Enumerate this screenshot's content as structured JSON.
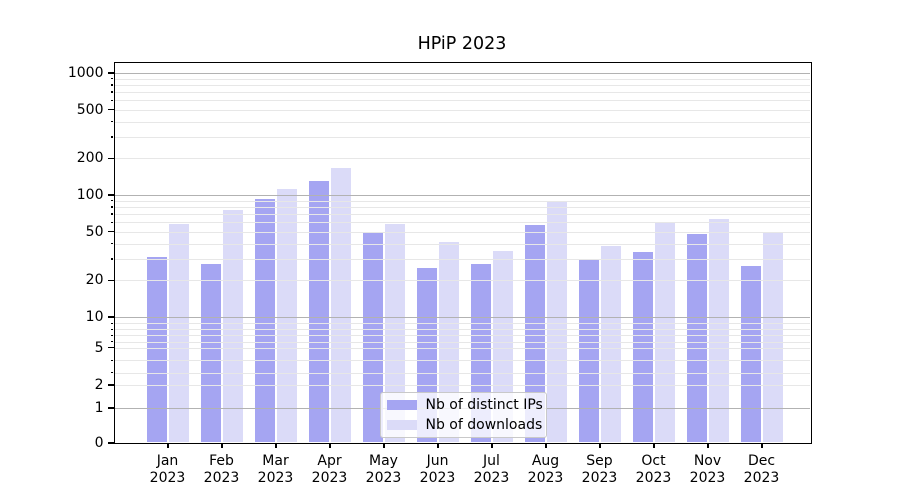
{
  "chart_data": {
    "type": "bar",
    "title": "HPiP 2023",
    "xlabel": "",
    "ylabel": "",
    "categories": [
      "Jan",
      "Feb",
      "Mar",
      "Apr",
      "May",
      "Jun",
      "Jul",
      "Aug",
      "Sep",
      "Oct",
      "Nov",
      "Dec"
    ],
    "category_year_line": "2023",
    "series": [
      {
        "name": "Nb of distinct IPs",
        "color": "#a5a5f2",
        "values": [
          31,
          27,
          92,
          130,
          50,
          25,
          27,
          57,
          30,
          34,
          48,
          26
        ]
      },
      {
        "name": "Nb of downloads",
        "color": "#dbdbf8",
        "values": [
          58,
          75,
          111,
          166,
          58,
          41,
          35,
          90,
          38,
          59,
          63,
          50
        ]
      }
    ],
    "y_axis": {
      "scale": "log-with-zero",
      "ticks": [
        0,
        1,
        2,
        5,
        10,
        20,
        50,
        100,
        200,
        500,
        1000
      ],
      "ylim": [
        0,
        1230
      ]
    },
    "grid": {
      "major_levels": [
        1,
        10,
        100,
        1000
      ],
      "minor_bases": [
        1,
        10,
        100
      ],
      "major_color": "#b2b2b2",
      "minor_color": "#e7e7e7",
      "grid_on": true,
      "grid_above_bars": true
    },
    "legend": {
      "position": "lower center"
    },
    "colors": {
      "background": "#ffffff",
      "axis": "#000000",
      "text": "#000000"
    }
  }
}
